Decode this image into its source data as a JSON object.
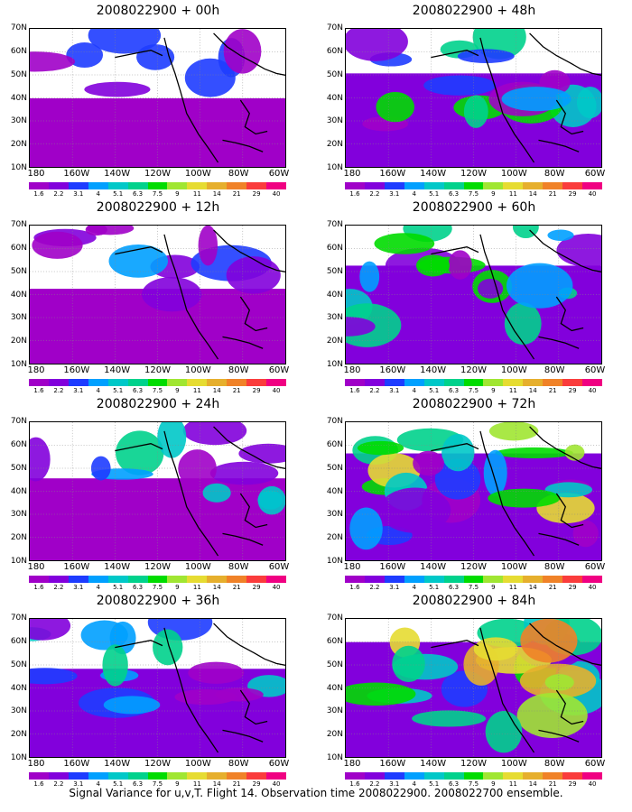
{
  "panels": [
    {
      "title": "2008022900 + 00h",
      "intensity": 0.1,
      "seed": 1
    },
    {
      "title": "2008022900 + 12h",
      "intensity": 0.2,
      "seed": 2
    },
    {
      "title": "2008022900 + 24h",
      "intensity": 0.32,
      "seed": 3
    },
    {
      "title": "2008022900 + 36h",
      "intensity": 0.42,
      "seed": 4
    },
    {
      "title": "2008022900 + 48h",
      "intensity": 0.5,
      "seed": 5
    },
    {
      "title": "2008022900 + 60h",
      "intensity": 0.58,
      "seed": 6
    },
    {
      "title": "2008022900 + 72h",
      "intensity": 0.72,
      "seed": 7
    },
    {
      "title": "2008022900 + 84h",
      "intensity": 0.85,
      "seed": 8
    }
  ],
  "lat_labels": [
    "70N",
    "60N",
    "50N",
    "40N",
    "30N",
    "20N",
    "10N"
  ],
  "lon_labels": [
    "180",
    "160W",
    "140W",
    "120W",
    "100W",
    "80W",
    "60W"
  ],
  "colorbar": {
    "values": [
      "1.6",
      "2.2",
      "3.1",
      "4",
      "5.1",
      "6.3",
      "7.5",
      "9",
      "11",
      "14",
      "21",
      "29",
      "40"
    ],
    "colors": [
      "#a000c8",
      "#8200dc",
      "#1e3cff",
      "#00a0ff",
      "#00c8c8",
      "#00d28c",
      "#00dc00",
      "#a0e632",
      "#e6dc32",
      "#e6af2d",
      "#f08228",
      "#fa3c3c",
      "#f00082"
    ]
  },
  "footer": "Signal Variance for u,v,T. Flight 14. Observation time 2008022900. 2008022700 ensemble."
}
